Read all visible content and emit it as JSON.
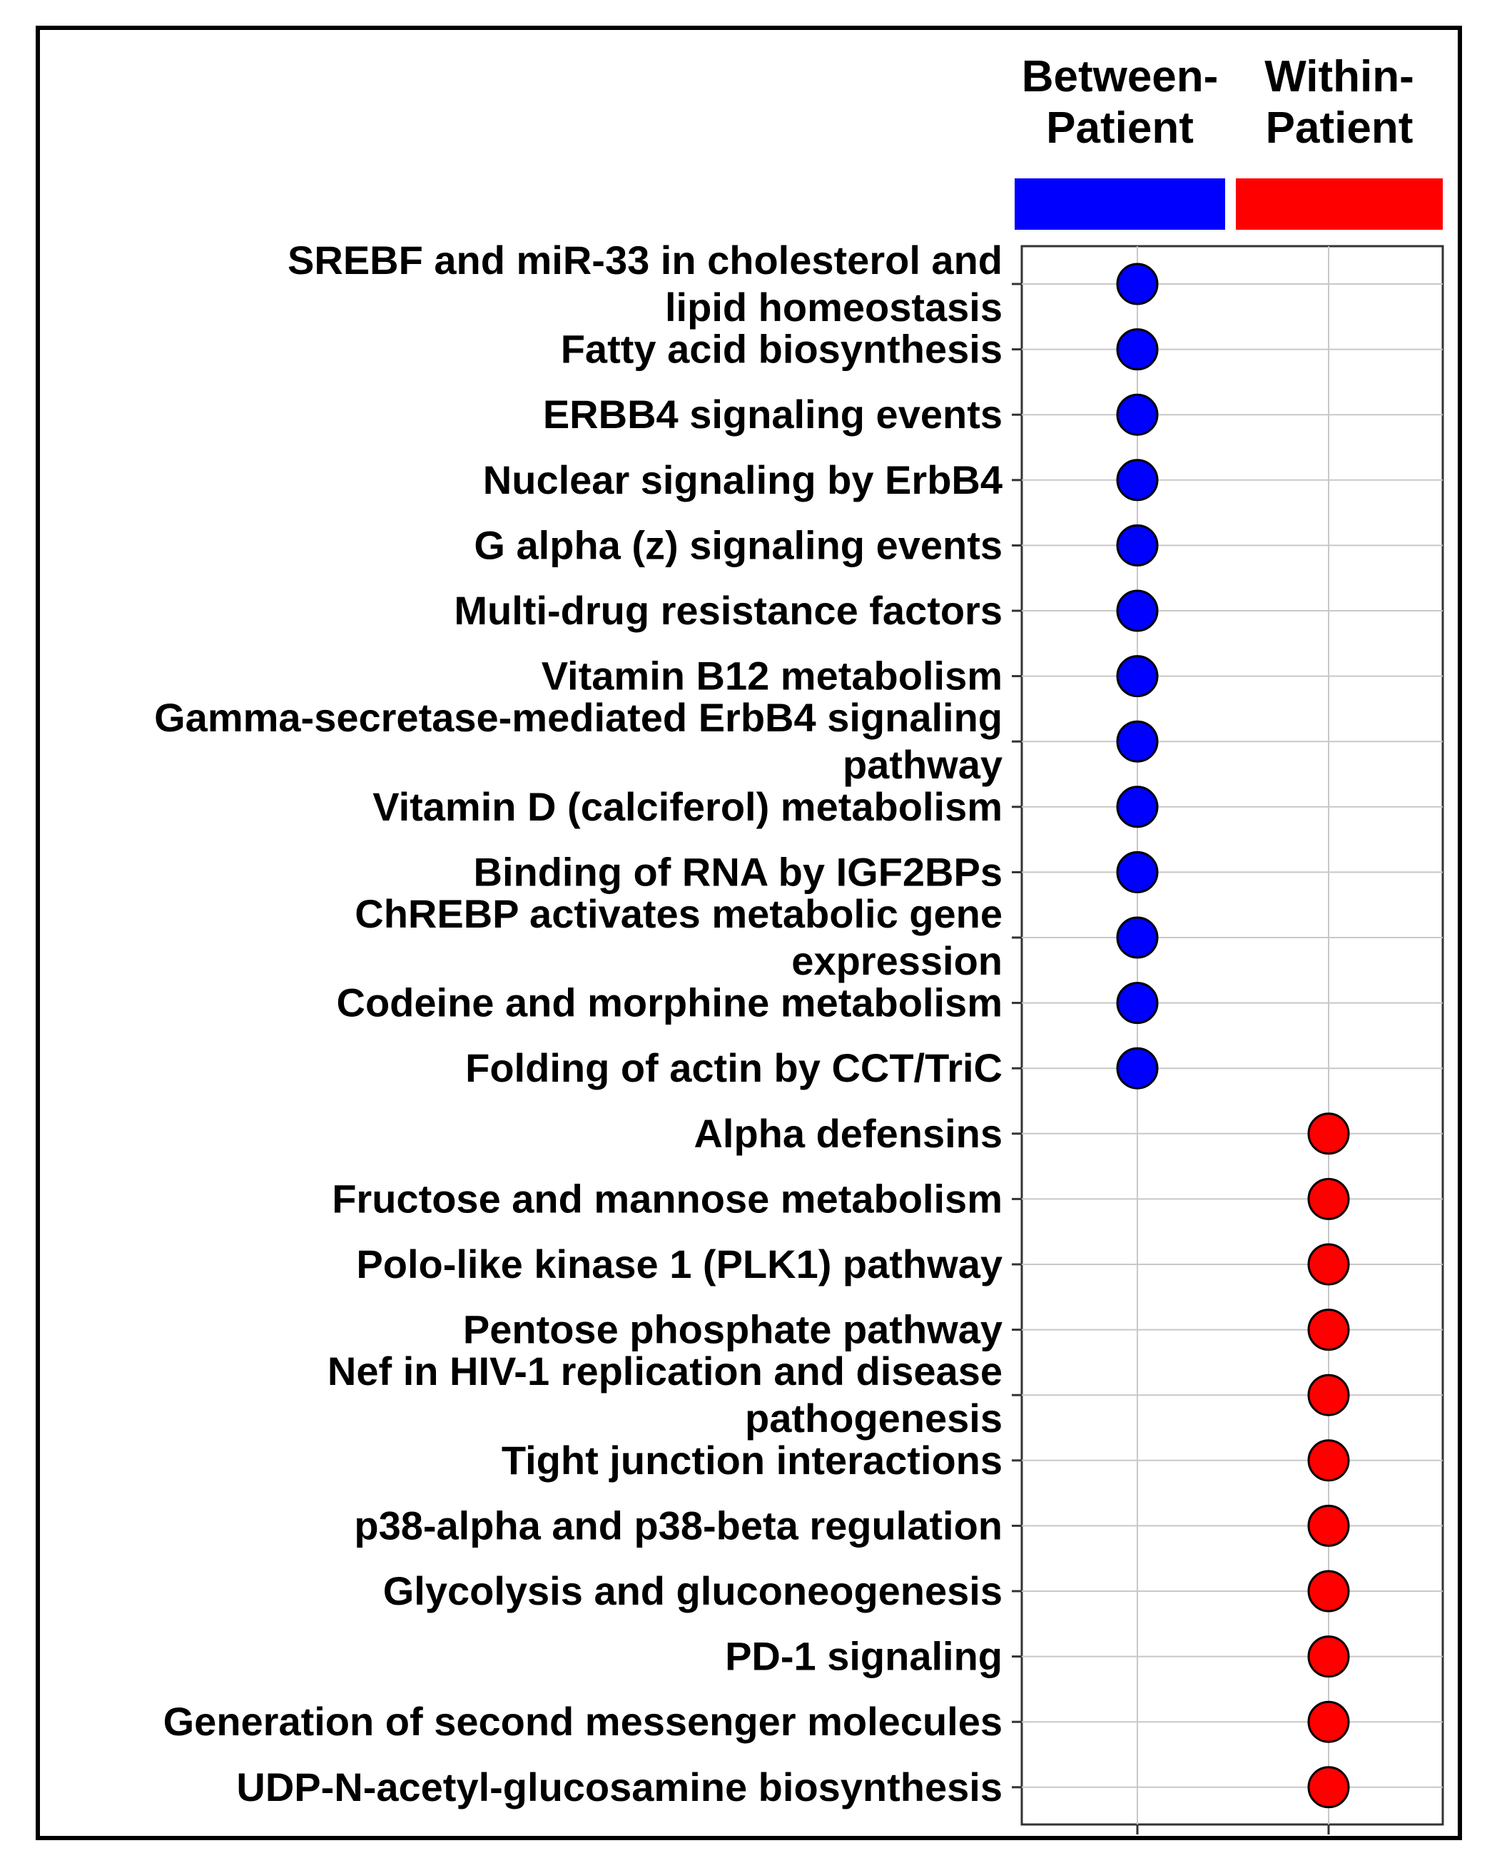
{
  "chart_data": {
    "type": "scatter",
    "title": "",
    "xlabel": "",
    "ylabel": "",
    "grid": true,
    "colors": {
      "Between-Patient": "#0000ff",
      "Within-Patient": "#ff0000"
    },
    "columns": [
      {
        "name": "Between-Patient",
        "label_lines": [
          "Between-",
          "Patient"
        ],
        "color": "#0000ff"
      },
      {
        "name": "Within-Patient",
        "label_lines": [
          "Within-",
          "Patient"
        ],
        "color": "#ff0000"
      }
    ],
    "rows": [
      {
        "label_lines": [
          "SREBF and miR-33 in cholesterol and",
          "lipid homeostasis"
        ],
        "column": "Between-Patient"
      },
      {
        "label_lines": [
          "Fatty acid biosynthesis"
        ],
        "column": "Between-Patient"
      },
      {
        "label_lines": [
          "ERBB4 signaling events"
        ],
        "column": "Between-Patient"
      },
      {
        "label_lines": [
          "Nuclear signaling by ErbB4"
        ],
        "column": "Between-Patient"
      },
      {
        "label_lines": [
          "G alpha (z) signaling events"
        ],
        "column": "Between-Patient"
      },
      {
        "label_lines": [
          "Multi-drug resistance factors"
        ],
        "column": "Between-Patient"
      },
      {
        "label_lines": [
          "Vitamin B12 metabolism"
        ],
        "column": "Between-Patient"
      },
      {
        "label_lines": [
          "Gamma-secretase-mediated ErbB4 signaling",
          "pathway"
        ],
        "column": "Between-Patient"
      },
      {
        "label_lines": [
          "Vitamin D (calciferol) metabolism"
        ],
        "column": "Between-Patient"
      },
      {
        "label_lines": [
          "Binding of RNA by IGF2BPs"
        ],
        "column": "Between-Patient"
      },
      {
        "label_lines": [
          "ChREBP activates metabolic gene",
          "expression"
        ],
        "column": "Between-Patient"
      },
      {
        "label_lines": [
          "Codeine and morphine metabolism"
        ],
        "column": "Between-Patient"
      },
      {
        "label_lines": [
          "Folding of actin by CCT/TriC"
        ],
        "column": "Between-Patient"
      },
      {
        "label_lines": [
          "Alpha defensins"
        ],
        "column": "Within-Patient"
      },
      {
        "label_lines": [
          "Fructose and mannose metabolism"
        ],
        "column": "Within-Patient"
      },
      {
        "label_lines": [
          "Polo-like kinase 1 (PLK1) pathway"
        ],
        "column": "Within-Patient"
      },
      {
        "label_lines": [
          "Pentose phosphate pathway"
        ],
        "column": "Within-Patient"
      },
      {
        "label_lines": [
          "Nef in HIV-1 replication and disease",
          "pathogenesis"
        ],
        "column": "Within-Patient"
      },
      {
        "label_lines": [
          "Tight junction interactions"
        ],
        "column": "Within-Patient"
      },
      {
        "label_lines": [
          "p38-alpha and p38-beta regulation"
        ],
        "column": "Within-Patient"
      },
      {
        "label_lines": [
          "Glycolysis and gluconeogenesis"
        ],
        "column": "Within-Patient"
      },
      {
        "label_lines": [
          "PD-1 signaling"
        ],
        "column": "Within-Patient"
      },
      {
        "label_lines": [
          "Generation of second messenger molecules"
        ],
        "column": "Within-Patient"
      },
      {
        "label_lines": [
          "UDP-N-acetyl-glucosamine biosynthesis"
        ],
        "column": "Within-Patient"
      }
    ]
  }
}
